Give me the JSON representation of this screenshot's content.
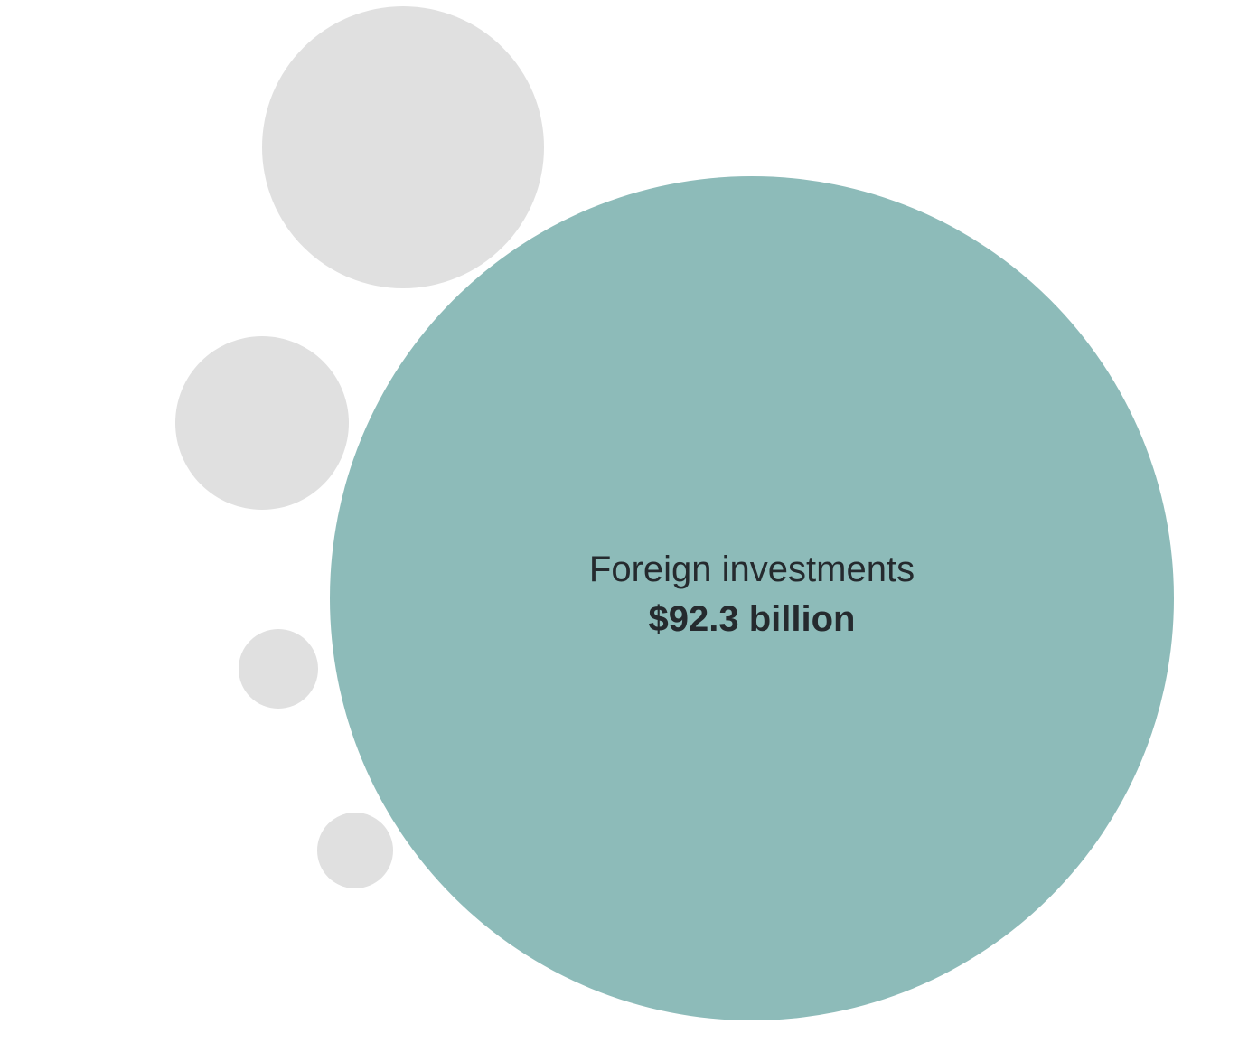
{
  "chart_data": {
    "type": "bubble",
    "highlight_color": "#8dbbb9",
    "muted_color": "#e0e0e0",
    "label_color": "#252a2e",
    "bubbles": [
      {
        "name": "Foreign investments",
        "value_label": "$92.3 billion",
        "highlighted": true
      },
      {
        "name": "",
        "value_label": "",
        "highlighted": false
      },
      {
        "name": "",
        "value_label": "",
        "highlighted": false
      },
      {
        "name": "",
        "value_label": "",
        "highlighted": false
      },
      {
        "name": "",
        "value_label": "",
        "highlighted": false
      }
    ]
  }
}
